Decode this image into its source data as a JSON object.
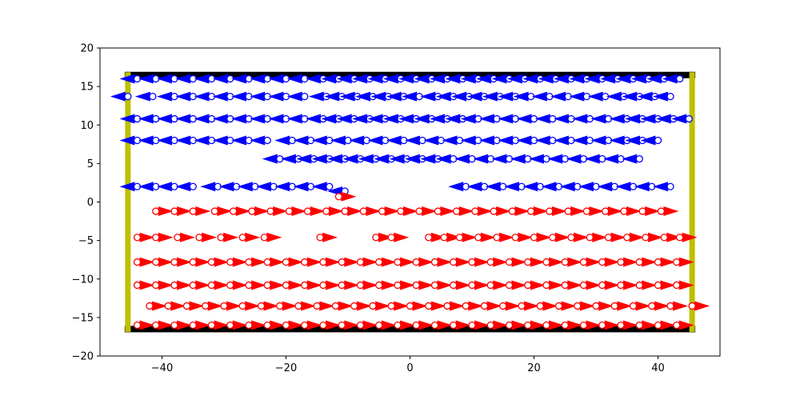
{
  "chart_data": {
    "type": "scatter",
    "title": "",
    "xlabel": "",
    "ylabel": "",
    "xlim": [
      -50,
      50
    ],
    "ylim": [
      -20,
      20
    ],
    "grid": false,
    "xticks": [
      -40,
      -20,
      0,
      20,
      40
    ],
    "xtick_labels": [
      "−40",
      "−20",
      "0",
      "20",
      "40"
    ],
    "yticks": [
      -20,
      -15,
      -10,
      -5,
      0,
      5,
      10,
      15,
      20
    ],
    "ytick_labels": [
      "−20",
      "−15",
      "−10",
      "−5",
      "0",
      "5",
      "10",
      "15",
      "20"
    ],
    "colors": {
      "blue_agents": "#0000ff",
      "red_agents": "#ff0000",
      "horizontal_walls": "#000000",
      "vertical_walls": "#bfbf00"
    },
    "walls": [
      {
        "kind": "horizontal",
        "x": [
          -45.5,
          45.5
        ],
        "y": [
          16.5,
          16.5
        ]
      },
      {
        "kind": "horizontal",
        "x": [
          -45.5,
          45.5
        ],
        "y": [
          -16.5,
          -16.5
        ]
      },
      {
        "kind": "vertical",
        "x": [
          -45.5,
          -45.5
        ],
        "y": [
          -16.5,
          16.5
        ]
      },
      {
        "kind": "vertical",
        "x": [
          45.5,
          45.5
        ],
        "y": [
          -16.5,
          16.5
        ]
      }
    ],
    "series": [
      {
        "color": "blue_agents",
        "direction": "left",
        "rows": [
          {
            "y": 16.0,
            "x": [
              -44.0,
              -41.0,
              -38.0,
              -35.0,
              -32.0,
              -29.0,
              -26.0,
              -23.0,
              -20.0,
              -17.0,
              -14.0,
              -11.5,
              -9.0,
              -6.5,
              -4.0,
              -1.5,
              1.0,
              3.5,
              6.0,
              8.5,
              11.0,
              13.5,
              16.0,
              18.5,
              21.0,
              23.5,
              26.0,
              28.5,
              31.0,
              33.5,
              36.0,
              38.5,
              41.0,
              43.5
            ]
          },
          {
            "y": 13.7,
            "x": [
              -45.5,
              -41.5,
              -38.0,
              -35.0,
              -32.0,
              -29.0,
              -26.0,
              -23.0,
              -20.0,
              -17.0,
              -13.5,
              -11.0,
              -8.5,
              -6.0,
              -3.5,
              -1.0,
              1.5,
              4.5,
              7.0,
              9.5,
              12.0,
              14.5,
              17.0,
              19.5,
              22.5,
              25.5,
              28.5,
              31.5,
              34.5,
              37.0,
              39.5,
              42.0
            ]
          },
          {
            "y": 10.8,
            "x": [
              -44.0,
              -41.0,
              -38.0,
              -35.0,
              -32.0,
              -29.0,
              -26.0,
              -23.0,
              -20.0,
              -17.0,
              -14.0,
              -11.5,
              -9.0,
              -6.5,
              -4.0,
              -1.5,
              1.0,
              3.5,
              6.0,
              8.5,
              11.0,
              14.0,
              17.0,
              20.0,
              23.0,
              26.0,
              29.0,
              32.0,
              35.0,
              37.5,
              40.0,
              42.5,
              45.0
            ]
          },
          {
            "y": 8.0,
            "x": [
              -44.0,
              -41.0,
              -38.0,
              -35.0,
              -32.0,
              -29.0,
              -26.0,
              -23.0,
              -19.0,
              -16.0,
              -13.0,
              -10.0,
              -7.0,
              -4.0,
              -1.0,
              2.0,
              5.0,
              8.0,
              11.0,
              14.0,
              17.0,
              20.0,
              23.0,
              26.0,
              29.0,
              32.0,
              35.0,
              37.5,
              40.0
            ]
          },
          {
            "y": 5.6,
            "x": [
              -21.0,
              -18.0,
              -15.5,
              -13.0,
              -10.5,
              -8.0,
              -5.5,
              -3.0,
              -0.5,
              2.0,
              4.5,
              7.0,
              10.0,
              13.0,
              16.0,
              19.0,
              22.0,
              25.0,
              28.0,
              31.0,
              34.0,
              37.0
            ]
          },
          {
            "y": 2.0,
            "x": [
              -44.0,
              -41.0,
              -38.0,
              -35.0,
              -31.0,
              -28.0,
              -25.0,
              -22.0,
              -19.0,
              -16.0,
              -13.0,
              9.0,
              12.0,
              15.0,
              18.0,
              21.0,
              24.0,
              27.0,
              30.0,
              33.0,
              36.0,
              39.0,
              42.0
            ]
          },
          {
            "y": 1.4,
            "x": [
              -10.5
            ]
          }
        ]
      },
      {
        "color": "red_agents",
        "direction": "right",
        "rows": [
          {
            "y": -1.2,
            "x": [
              -41.0,
              -38.0,
              -35.0,
              -31.5,
              -28.5,
              -25.5,
              -22.5,
              -19.5,
              -16.5,
              -13.5,
              -10.5,
              -7.5,
              -4.5,
              -1.5,
              1.5,
              4.5,
              7.5,
              10.5,
              13.5,
              16.5,
              19.5,
              22.5,
              25.5,
              28.5,
              31.5,
              34.5,
              37.5,
              40.5
            ]
          },
          {
            "y": -4.6,
            "x": [
              -44.0,
              -41.0,
              -37.5,
              -34.0,
              -30.5,
              -27.0,
              -23.5,
              -14.5,
              -5.5,
              -3.0,
              3.0,
              5.5,
              8.0,
              11.0,
              14.0,
              17.0,
              20.0,
              23.0,
              26.0,
              29.0,
              32.0,
              35.0,
              38.0,
              41.0,
              43.5
            ]
          },
          {
            "y": -7.8,
            "x": [
              -44.0,
              -41.0,
              -38.0,
              -35.0,
              -32.0,
              -29.0,
              -26.0,
              -23.0,
              -20.0,
              -17.0,
              -14.0,
              -11.0,
              -8.0,
              -5.0,
              -2.0,
              1.0,
              4.0,
              7.0,
              10.0,
              13.0,
              16.0,
              19.0,
              22.0,
              25.0,
              28.0,
              31.0,
              34.0,
              37.0,
              40.0,
              43.0
            ]
          },
          {
            "y": -10.8,
            "x": [
              -44.0,
              -41.0,
              -38.0,
              -35.0,
              -32.0,
              -29.0,
              -26.0,
              -23.0,
              -20.0,
              -17.0,
              -14.0,
              -11.0,
              -8.0,
              -5.0,
              -2.0,
              1.0,
              4.0,
              7.0,
              10.0,
              13.0,
              16.0,
              19.0,
              22.0,
              25.0,
              28.0,
              31.0,
              34.0,
              37.0,
              40.0,
              43.0
            ]
          },
          {
            "y": -13.5,
            "x": [
              -42.0,
              -39.0,
              -36.0,
              -33.0,
              -30.0,
              -27.0,
              -24.0,
              -21.0,
              -18.0,
              -15.0,
              -12.0,
              -9.0,
              -6.0,
              -3.0,
              0.0,
              3.0,
              6.0,
              9.0,
              12.0,
              15.0,
              18.0,
              21.0,
              24.0,
              27.0,
              30.0,
              33.0,
              36.0,
              39.0,
              42.0,
              45.5
            ]
          },
          {
            "y": -16.0,
            "x": [
              -44.0,
              -41.0,
              -38.0,
              -35.0,
              -32.0,
              -29.0,
              -26.0,
              -23.0,
              -20.0,
              -17.0,
              -14.0,
              -11.0,
              -8.0,
              -5.0,
              -2.0,
              1.0,
              4.0,
              7.0,
              10.0,
              13.0,
              16.0,
              19.0,
              22.0,
              25.0,
              28.0,
              31.0,
              34.0,
              37.0,
              40.0,
              43.0
            ]
          },
          {
            "y": 0.7,
            "x": [
              -11.5
            ]
          }
        ]
      }
    ]
  }
}
